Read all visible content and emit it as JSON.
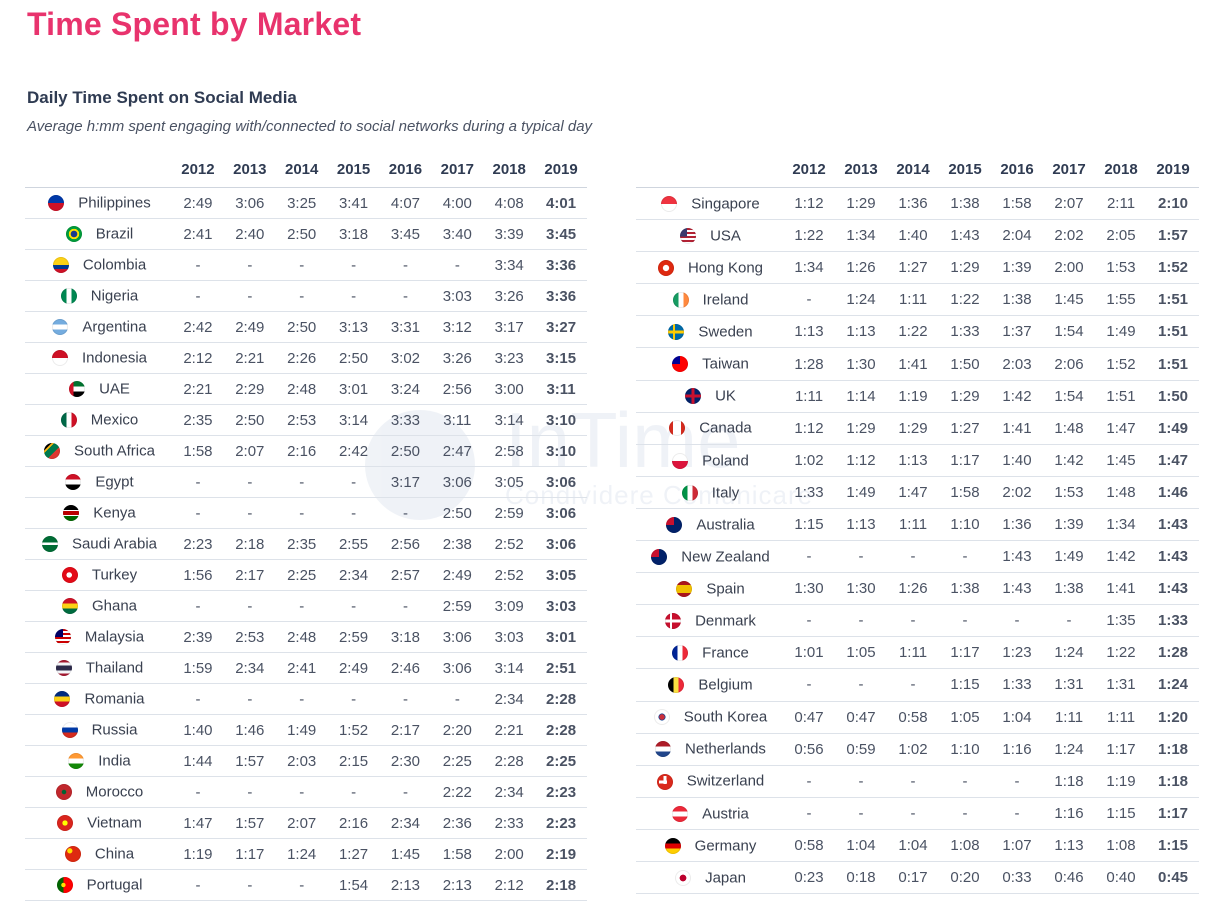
{
  "header": {
    "title": "Time Spent by Market",
    "subtitle": "Daily Time Spent on Social Media",
    "description": "Average h:mm spent engaging with/connected to social networks during a typical day"
  },
  "watermark": {
    "text": "InTime",
    "subtext": "Condividere Comunicare"
  },
  "chart_data": {
    "type": "table",
    "title": "Daily Time Spent on Social Media",
    "subtitle": "Average h:mm spent engaging with/connected to social networks during a typical day",
    "columns": [
      "2012",
      "2013",
      "2014",
      "2015",
      "2016",
      "2017",
      "2018",
      "2019"
    ],
    "tables": [
      {
        "rows": [
          {
            "country": "Philippines",
            "flag": "philippines-flag",
            "values": [
              "2:49",
              "3:06",
              "3:25",
              "3:41",
              "4:07",
              "4:00",
              "4:08",
              "4:01"
            ]
          },
          {
            "country": "Brazil",
            "flag": "brazil-flag",
            "values": [
              "2:41",
              "2:40",
              "2:50",
              "3:18",
              "3:45",
              "3:40",
              "3:39",
              "3:45"
            ]
          },
          {
            "country": "Colombia",
            "flag": "colombia-flag",
            "values": [
              "-",
              "-",
              "-",
              "-",
              "-",
              "-",
              "3:34",
              "3:36"
            ]
          },
          {
            "country": "Nigeria",
            "flag": "nigeria-flag",
            "values": [
              "-",
              "-",
              "-",
              "-",
              "-",
              "3:03",
              "3:26",
              "3:36"
            ]
          },
          {
            "country": "Argentina",
            "flag": "argentina-flag",
            "values": [
              "2:42",
              "2:49",
              "2:50",
              "3:13",
              "3:31",
              "3:12",
              "3:17",
              "3:27"
            ]
          },
          {
            "country": "Indonesia",
            "flag": "indonesia-flag",
            "values": [
              "2:12",
              "2:21",
              "2:26",
              "2:50",
              "3:02",
              "3:26",
              "3:23",
              "3:15"
            ]
          },
          {
            "country": "UAE",
            "flag": "uae-flag",
            "values": [
              "2:21",
              "2:29",
              "2:48",
              "3:01",
              "3:24",
              "2:56",
              "3:00",
              "3:11"
            ]
          },
          {
            "country": "Mexico",
            "flag": "mexico-flag",
            "values": [
              "2:35",
              "2:50",
              "2:53",
              "3:14",
              "3:33",
              "3:11",
              "3:14",
              "3:10"
            ]
          },
          {
            "country": "South Africa",
            "flag": "south-africa-flag",
            "values": [
              "1:58",
              "2:07",
              "2:16",
              "2:42",
              "2:50",
              "2:47",
              "2:58",
              "3:10"
            ]
          },
          {
            "country": "Egypt",
            "flag": "egypt-flag",
            "values": [
              "-",
              "-",
              "-",
              "-",
              "3:17",
              "3:06",
              "3:05",
              "3:06"
            ]
          },
          {
            "country": "Kenya",
            "flag": "kenya-flag",
            "values": [
              "-",
              "-",
              "-",
              "-",
              "-",
              "2:50",
              "2:59",
              "3:06"
            ]
          },
          {
            "country": "Saudi Arabia",
            "flag": "saudi-arabia-flag",
            "values": [
              "2:23",
              "2:18",
              "2:35",
              "2:55",
              "2:56",
              "2:38",
              "2:52",
              "3:06"
            ]
          },
          {
            "country": "Turkey",
            "flag": "turkey-flag",
            "values": [
              "1:56",
              "2:17",
              "2:25",
              "2:34",
              "2:57",
              "2:49",
              "2:52",
              "3:05"
            ]
          },
          {
            "country": "Ghana",
            "flag": "ghana-flag",
            "values": [
              "-",
              "-",
              "-",
              "-",
              "-",
              "2:59",
              "3:09",
              "3:03"
            ]
          },
          {
            "country": "Malaysia",
            "flag": "malaysia-flag",
            "values": [
              "2:39",
              "2:53",
              "2:48",
              "2:59",
              "3:18",
              "3:06",
              "3:03",
              "3:01"
            ]
          },
          {
            "country": "Thailand",
            "flag": "thailand-flag",
            "values": [
              "1:59",
              "2:34",
              "2:41",
              "2:49",
              "2:46",
              "3:06",
              "3:14",
              "2:51"
            ]
          },
          {
            "country": "Romania",
            "flag": "romania-flag",
            "values": [
              "-",
              "-",
              "-",
              "-",
              "-",
              "-",
              "2:34",
              "2:28"
            ]
          },
          {
            "country": "Russia",
            "flag": "russia-flag",
            "values": [
              "1:40",
              "1:46",
              "1:49",
              "1:52",
              "2:17",
              "2:20",
              "2:21",
              "2:28"
            ]
          },
          {
            "country": "India",
            "flag": "india-flag",
            "values": [
              "1:44",
              "1:57",
              "2:03",
              "2:15",
              "2:30",
              "2:25",
              "2:28",
              "2:25"
            ]
          },
          {
            "country": "Morocco",
            "flag": "morocco-flag",
            "values": [
              "-",
              "-",
              "-",
              "-",
              "-",
              "2:22",
              "2:34",
              "2:23"
            ]
          },
          {
            "country": "Vietnam",
            "flag": "vietnam-flag",
            "values": [
              "1:47",
              "1:57",
              "2:07",
              "2:16",
              "2:34",
              "2:36",
              "2:33",
              "2:23"
            ]
          },
          {
            "country": "China",
            "flag": "china-flag",
            "values": [
              "1:19",
              "1:17",
              "1:24",
              "1:27",
              "1:45",
              "1:58",
              "2:00",
              "2:19"
            ]
          },
          {
            "country": "Portugal",
            "flag": "portugal-flag",
            "values": [
              "-",
              "-",
              "-",
              "1:54",
              "2:13",
              "2:13",
              "2:12",
              "2:18"
            ]
          }
        ]
      },
      {
        "rows": [
          {
            "country": "Singapore",
            "flag": "singapore-flag",
            "values": [
              "1:12",
              "1:29",
              "1:36",
              "1:38",
              "1:58",
              "2:07",
              "2:11",
              "2:10"
            ]
          },
          {
            "country": "USA",
            "flag": "usa-flag",
            "values": [
              "1:22",
              "1:34",
              "1:40",
              "1:43",
              "2:04",
              "2:02",
              "2:05",
              "1:57"
            ]
          },
          {
            "country": "Hong Kong",
            "flag": "hong-kong-flag",
            "values": [
              "1:34",
              "1:26",
              "1:27",
              "1:29",
              "1:39",
              "2:00",
              "1:53",
              "1:52"
            ]
          },
          {
            "country": "Ireland",
            "flag": "ireland-flag",
            "values": [
              "-",
              "1:24",
              "1:11",
              "1:22",
              "1:38",
              "1:45",
              "1:55",
              "1:51"
            ]
          },
          {
            "country": "Sweden",
            "flag": "sweden-flag",
            "values": [
              "1:13",
              "1:13",
              "1:22",
              "1:33",
              "1:37",
              "1:54",
              "1:49",
              "1:51"
            ]
          },
          {
            "country": "Taiwan",
            "flag": "taiwan-flag",
            "values": [
              "1:28",
              "1:30",
              "1:41",
              "1:50",
              "2:03",
              "2:06",
              "1:52",
              "1:51"
            ]
          },
          {
            "country": "UK",
            "flag": "uk-flag",
            "values": [
              "1:11",
              "1:14",
              "1:19",
              "1:29",
              "1:42",
              "1:54",
              "1:51",
              "1:50"
            ]
          },
          {
            "country": "Canada",
            "flag": "canada-flag",
            "values": [
              "1:12",
              "1:29",
              "1:29",
              "1:27",
              "1:41",
              "1:48",
              "1:47",
              "1:49"
            ]
          },
          {
            "country": "Poland",
            "flag": "poland-flag",
            "values": [
              "1:02",
              "1:12",
              "1:13",
              "1:17",
              "1:40",
              "1:42",
              "1:45",
              "1:47"
            ]
          },
          {
            "country": "Italy",
            "flag": "italy-flag",
            "values": [
              "1:33",
              "1:49",
              "1:47",
              "1:58",
              "2:02",
              "1:53",
              "1:48",
              "1:46"
            ]
          },
          {
            "country": "Australia",
            "flag": "australia-flag",
            "values": [
              "1:15",
              "1:13",
              "1:11",
              "1:10",
              "1:36",
              "1:39",
              "1:34",
              "1:43"
            ]
          },
          {
            "country": "New Zealand",
            "flag": "new-zealand-flag",
            "values": [
              "-",
              "-",
              "-",
              "-",
              "1:43",
              "1:49",
              "1:42",
              "1:43"
            ]
          },
          {
            "country": "Spain",
            "flag": "spain-flag",
            "values": [
              "1:30",
              "1:30",
              "1:26",
              "1:38",
              "1:43",
              "1:38",
              "1:41",
              "1:43"
            ]
          },
          {
            "country": "Denmark",
            "flag": "denmark-flag",
            "values": [
              "-",
              "-",
              "-",
              "-",
              "-",
              "-",
              "1:35",
              "1:33"
            ]
          },
          {
            "country": "France",
            "flag": "france-flag",
            "values": [
              "1:01",
              "1:05",
              "1:11",
              "1:17",
              "1:23",
              "1:24",
              "1:22",
              "1:28"
            ]
          },
          {
            "country": "Belgium",
            "flag": "belgium-flag",
            "values": [
              "-",
              "-",
              "-",
              "1:15",
              "1:33",
              "1:31",
              "1:31",
              "1:24"
            ]
          },
          {
            "country": "South Korea",
            "flag": "south-korea-flag",
            "values": [
              "0:47",
              "0:47",
              "0:58",
              "1:05",
              "1:04",
              "1:11",
              "1:11",
              "1:20"
            ]
          },
          {
            "country": "Netherlands",
            "flag": "netherlands-flag",
            "values": [
              "0:56",
              "0:59",
              "1:02",
              "1:10",
              "1:16",
              "1:24",
              "1:17",
              "1:18"
            ]
          },
          {
            "country": "Switzerland",
            "flag": "switzerland-flag",
            "values": [
              "-",
              "-",
              "-",
              "-",
              "-",
              "1:18",
              "1:19",
              "1:18"
            ]
          },
          {
            "country": "Austria",
            "flag": "austria-flag",
            "values": [
              "-",
              "-",
              "-",
              "-",
              "-",
              "1:16",
              "1:15",
              "1:17"
            ]
          },
          {
            "country": "Germany",
            "flag": "germany-flag",
            "values": [
              "0:58",
              "1:04",
              "1:04",
              "1:08",
              "1:07",
              "1:13",
              "1:08",
              "1:15"
            ]
          },
          {
            "country": "Japan",
            "flag": "japan-flag",
            "values": [
              "0:23",
              "0:18",
              "0:17",
              "0:20",
              "0:33",
              "0:46",
              "0:40",
              "0:45"
            ]
          }
        ]
      }
    ]
  },
  "colors": {
    "accent": "#e8336d",
    "text": "#3a4150",
    "header": "#2f3b52"
  }
}
